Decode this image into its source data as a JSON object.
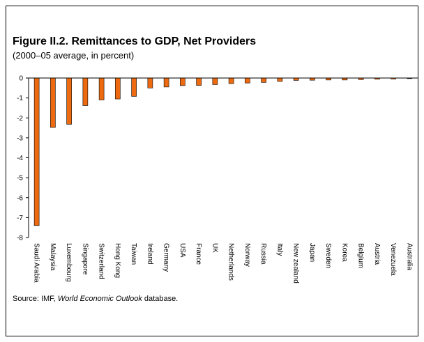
{
  "chart_data": {
    "type": "bar",
    "title": "Figure II.2. Remittances to GDP, Net Providers",
    "subtitle": "(2000–05 average, in percent)",
    "categories": [
      "Saudi Arabia",
      "Malaysia",
      "Luxembourg",
      "Singapore",
      "Switzerland",
      "Hong Kong",
      "Taiwan",
      "Ireland",
      "Germany",
      "USA",
      "France",
      "UK",
      "Netherlands",
      "Norway",
      "Russia",
      "Italy",
      "New zealand",
      "Japan",
      "Sweden",
      "Korea",
      "Belgium",
      "Austria",
      "Venezuela",
      "Australia"
    ],
    "values": [
      -7.4,
      -2.48,
      -2.32,
      -1.38,
      -1.1,
      -1.05,
      -0.92,
      -0.5,
      -0.45,
      -0.38,
      -0.37,
      -0.33,
      -0.28,
      -0.25,
      -0.22,
      -0.17,
      -0.12,
      -0.11,
      -0.1,
      -0.1,
      -0.08,
      -0.06,
      -0.05,
      -0.03
    ],
    "ylim": [
      -8,
      0
    ],
    "yticks": [
      "0",
      "-1",
      "-2",
      "-3",
      "-4",
      "-5",
      "-6",
      "-7",
      "-8"
    ],
    "grid": false,
    "legend": "none",
    "bar_color": "#ee6a10",
    "source_prefix": "Source: IMF,",
    "source_italic": "World Economic Outlook",
    "source_suffix": "database."
  }
}
